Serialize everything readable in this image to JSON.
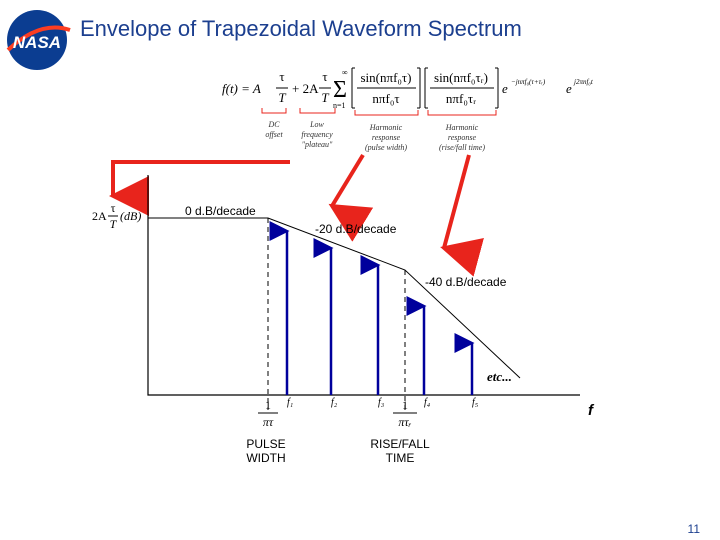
{
  "header": {
    "logo": "NASA",
    "title": "Envelope of Trapezoidal Waveform Spectrum"
  },
  "formula": {
    "lhs": "f(t) = A",
    "frac1_num": "τ",
    "frac1_den": "T",
    "plus": "+ 2A",
    "frac2_num": "τ",
    "frac2_den": "T",
    "sum": "Σ",
    "sum_top": "∞",
    "sum_bottom": "n=1",
    "term1_num": "sin(nπf₀τ)",
    "term1_den": "nπf₀τ",
    "term2_num": "sin(nπf₀τᵣ)",
    "term2_den": "nπf₀τᵣ",
    "exp1_base": "e",
    "exp1_power": "−jnπf₀(τ+τᵣ)",
    "exp2_base": "e",
    "exp2_power": "j2πnf₀t"
  },
  "annotations": {
    "dc_offset": [
      "DC",
      "offset"
    ],
    "plateau": [
      "Low",
      "frequency",
      "\"plateau\""
    ],
    "pulse_width": [
      "Harmonic",
      "response",
      "(pulse width)"
    ],
    "rise_fall": [
      "Harmonic",
      "response",
      "(rise/fall time)"
    ]
  },
  "diagram": {
    "y_label_prefix": "2A",
    "y_label_num": "τ",
    "y_label_den": "T",
    "y_label_suffix": "(dB)",
    "slopes": [
      "0 d.B/decade",
      "-20 d.B/decade",
      "-40 d.B/decade"
    ],
    "etc": "etc...",
    "harmonics": [
      "f₁",
      "f₂",
      "f₃",
      "f₄",
      "f₅"
    ],
    "x_axis": "f",
    "corner1": {
      "num": "1",
      "den": "πτ",
      "caption": [
        "PULSE",
        "WIDTH"
      ]
    },
    "corner2": {
      "num": "1",
      "den": "πτᵣ",
      "caption": [
        "RISE/FALL",
        "TIME"
      ]
    }
  },
  "footer": {
    "page": "11"
  }
}
